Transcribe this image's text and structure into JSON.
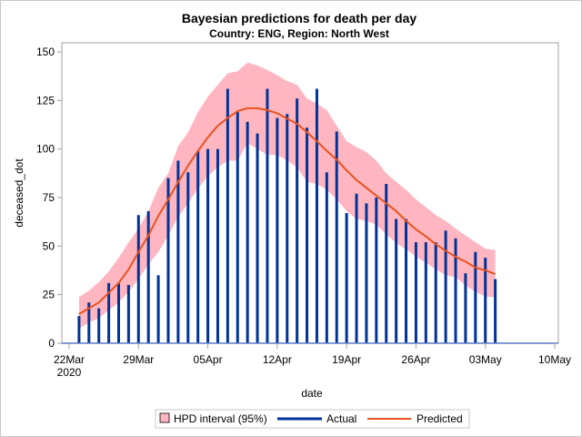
{
  "chart_data": {
    "type": "bar",
    "title": "Bayesian predictions for death per day",
    "subtitle": "Country: ENG, Region: North West",
    "xlabel": "date",
    "ylabel": "deceased_dot",
    "xlim": [
      "2020-03-22",
      "2020-05-10"
    ],
    "ylim": [
      0,
      150
    ],
    "x_ticks": [
      {
        "date": "2020-03-22",
        "label": "22Mar",
        "sublabel": "2020"
      },
      {
        "date": "2020-03-29",
        "label": "29Mar"
      },
      {
        "date": "2020-04-05",
        "label": "05Apr"
      },
      {
        "date": "2020-04-12",
        "label": "12Apr"
      },
      {
        "date": "2020-04-19",
        "label": "19Apr"
      },
      {
        "date": "2020-04-26",
        "label": "26Apr"
      },
      {
        "date": "2020-05-03",
        "label": "03May"
      },
      {
        "date": "2020-05-10",
        "label": "10May"
      }
    ],
    "y_ticks": [
      0,
      25,
      50,
      75,
      100,
      125,
      150
    ],
    "grid": false,
    "legend_position": "bottom",
    "start_date": "2020-03-23",
    "series": [
      {
        "name": "Actual",
        "kind": "needle",
        "color": "#003399",
        "values": [
          14,
          21,
          18,
          31,
          31,
          30,
          66,
          68,
          35,
          85,
          94,
          88,
          99,
          100,
          100,
          131,
          119,
          114,
          108,
          131,
          116,
          118,
          126,
          111,
          131,
          88,
          109,
          67,
          77,
          72,
          75,
          82,
          64,
          64,
          52,
          52,
          52,
          58,
          54,
          36,
          47,
          44,
          33
        ]
      },
      {
        "name": "Predicted",
        "kind": "line",
        "color": "#e8531f",
        "values": [
          15,
          18,
          21,
          26,
          31,
          38,
          47,
          55.5,
          65.6,
          74,
          83,
          91.4,
          99,
          106,
          112,
          116,
          119.5,
          121,
          121,
          120,
          118.4,
          115.6,
          113,
          108.6,
          104,
          99,
          94.5,
          89,
          84,
          80,
          76,
          72,
          68,
          63,
          58.6,
          55,
          51,
          47.6,
          44.5,
          42,
          39,
          37.5,
          35.6
        ]
      },
      {
        "name": "HPD interval (95%)",
        "kind": "band",
        "color": "#ffb6c1",
        "upper": [
          23.8,
          27,
          31.5,
          37,
          44,
          52,
          59,
          68,
          80,
          87.5,
          101.5,
          108.6,
          119,
          127,
          133,
          139,
          140,
          144.5,
          143,
          140.6,
          138,
          135,
          133,
          126,
          123.4,
          120,
          112,
          104,
          101,
          98.4,
          94,
          87.5,
          83,
          79,
          74,
          70,
          66,
          63,
          59,
          55.5,
          52,
          48.7,
          48
        ],
        "lower": [
          7.5,
          10.6,
          13,
          17,
          21,
          26.5,
          33,
          40.6,
          47,
          55.5,
          65,
          72,
          79.7,
          86,
          90.6,
          94,
          94,
          103,
          100,
          97,
          97,
          94,
          90.6,
          83,
          82,
          79,
          74,
          68,
          64,
          63,
          61,
          56,
          51.6,
          48.4,
          44.5,
          41.4,
          38,
          35,
          34,
          29.7,
          26.5,
          24,
          23.8
        ]
      }
    ]
  }
}
